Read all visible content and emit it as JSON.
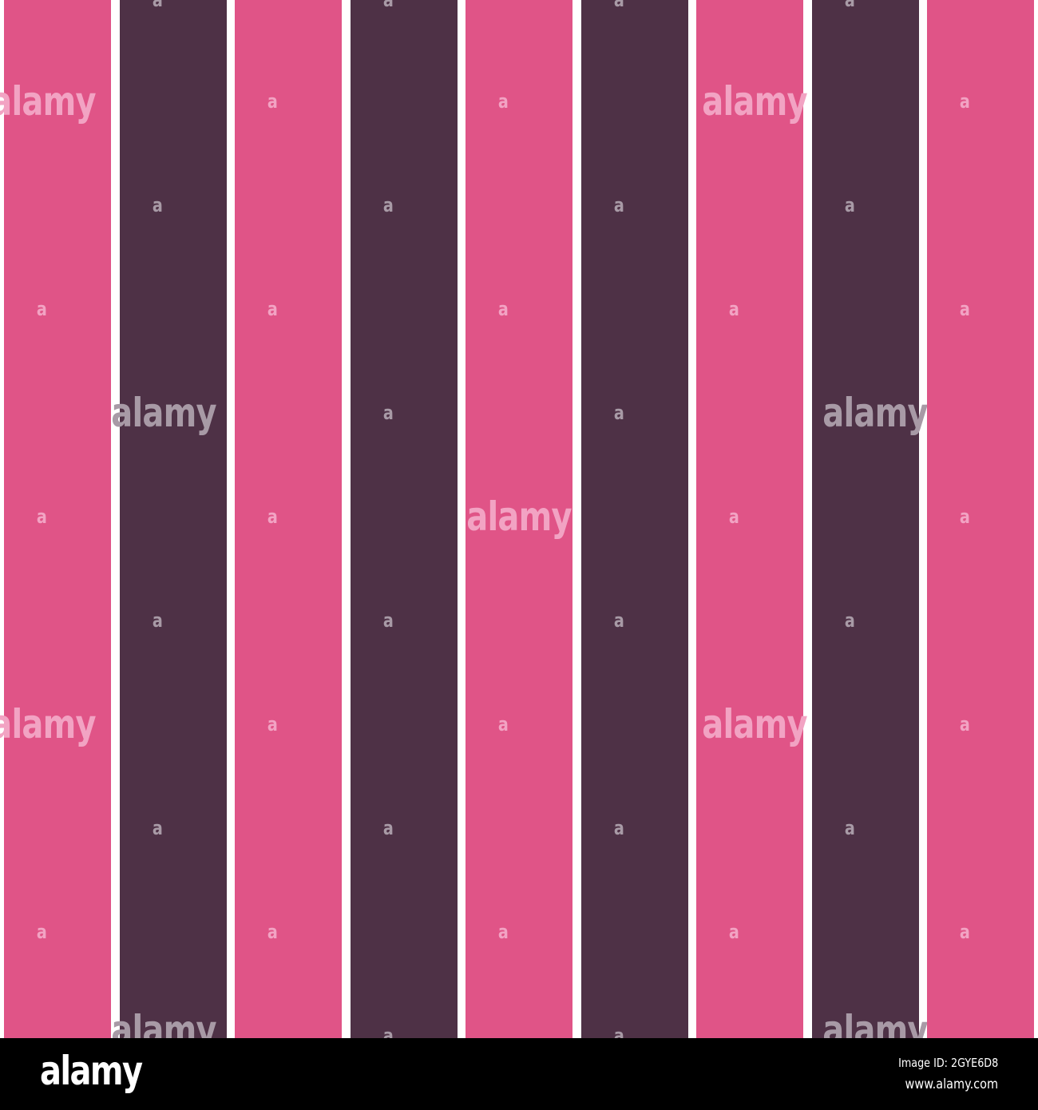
{
  "pattern": {
    "colors": {
      "pink": "#e05487",
      "plum": "#4e3146",
      "gap": "#ffffff"
    },
    "stripe_sequence": [
      "pink",
      "plum",
      "pink",
      "plum",
      "pink",
      "plum",
      "pink",
      "plum",
      "pink"
    ],
    "watermark_text": "alamy",
    "watermark_small_text": "a",
    "watermark_colors": {
      "on_pink": "#f2a3c3",
      "on_plum": "#a89aa6"
    }
  },
  "footer": {
    "logo": "alamy",
    "image_id": "Image ID: 2GYE6D8",
    "url": "www.alamy.com"
  }
}
